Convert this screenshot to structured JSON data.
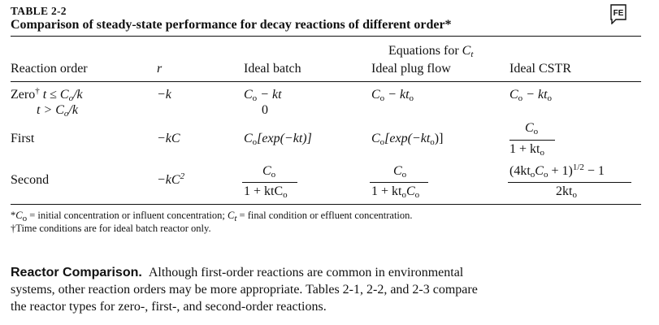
{
  "table": {
    "label": "TABLE 2-2",
    "title": "Comparison of steady-state performance for decay reactions of different order*",
    "header": {
      "group": "Equations for",
      "group_var": "C",
      "group_sub": "t",
      "col_order": "Reaction order",
      "col_r": "r",
      "col_batch": "Ideal batch",
      "col_plug": "Ideal plug flow",
      "col_cstr": "Ideal CSTR"
    },
    "rows": {
      "zero": {
        "label": "Zero",
        "dagger": "†",
        "cond1": "t ≤ C",
        "cond1_sub": "o",
        "cond1_tail": "/k",
        "cond2": "t > C",
        "cond2_sub": "o",
        "cond2_tail": "/k",
        "r": "−k",
        "batch1_a": "C",
        "batch1_sub": "o",
        "batch1_b": " − kt",
        "batch2": "0",
        "plug_a": "C",
        "plug_sub": "o",
        "plug_b": " − kt",
        "plug_sub2": "o",
        "cstr_a": "C",
        "cstr_sub": "o",
        "cstr_b": " − kt",
        "cstr_sub2": "o"
      },
      "first": {
        "label": "First",
        "r": "−kC",
        "batch": "C",
        "batch_sub": "o",
        "batch_tail": "[exp(−kt)]",
        "plug": "C",
        "plug_sub": "o",
        "plug_mid": "[exp(−kt",
        "plug_sub2": "o",
        "plug_tail": ")]",
        "cstr_num": "C",
        "cstr_num_sub": "o",
        "cstr_den": "1 + kt",
        "cstr_den_sub": "o"
      },
      "second": {
        "label": "Second",
        "r": "−kC",
        "r_sup": "2",
        "batch_num": "C",
        "batch_num_sub": "o",
        "batch_den": "1 + ktC",
        "batch_den_sub": "o",
        "plug_num": "C",
        "plug_num_sub": "o",
        "plug_den": "1 + kt",
        "plug_den_sub": "o",
        "plug_den_tail": "C",
        "plug_den_sub2": "o",
        "cstr_num_a": "(4kt",
        "cstr_num_sub1": "o",
        "cstr_num_b": "C",
        "cstr_num_sub2": "o",
        "cstr_num_c": " + 1)",
        "cstr_num_sup": "1/2",
        "cstr_num_d": " − 1",
        "cstr_den": "2kt",
        "cstr_den_sub": "o"
      }
    },
    "footnotes": {
      "f1_star": "*",
      "f1_a": "C",
      "f1_sub": "o",
      "f1_b": " = initial concentration or influent concentration; ",
      "f1_c": "C",
      "f1_sub2": "t",
      "f1_d": " = final condition or effluent concentration.",
      "f2": "†Time conditions are for ideal batch reactor only."
    }
  },
  "badge": {
    "text": "FE",
    "icon": "fe-exam-flag-icon"
  },
  "paragraph": {
    "heading": "Reactor Comparison.",
    "line1": "Although first-order reactions are common in environmental",
    "line2": "systems, other reaction orders may be more appropriate. Tables 2-1, 2-2, and 2-3 compare",
    "line3": "the reactor types for zero-, first-, and second-order reactions."
  }
}
